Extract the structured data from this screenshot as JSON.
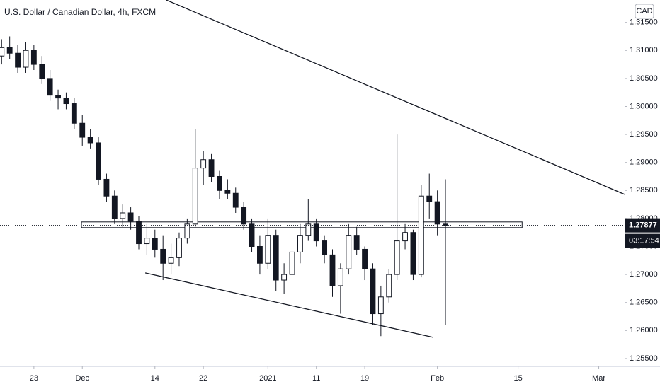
{
  "chart_data": {
    "type": "candlestick",
    "title": "U.S. Dollar / Canadian Dollar, 4h, FXCM",
    "currency": "CAD",
    "up_color": "#ffffff",
    "down_color": "#131722",
    "wick_color": "#131722",
    "x": [
      -4,
      -3,
      -2,
      -1,
      0,
      1,
      2,
      3,
      4,
      5,
      6,
      7,
      8,
      9,
      10,
      11,
      12,
      13,
      14,
      15,
      16,
      17,
      18,
      19,
      20,
      21,
      22,
      23,
      24,
      25,
      26,
      27,
      28,
      29,
      30,
      31,
      32,
      33,
      34,
      35,
      36,
      37,
      38,
      39,
      40,
      41,
      42,
      43,
      44,
      45,
      46,
      47,
      48,
      49,
      50,
      51
    ],
    "open": [
      1.309,
      1.3105,
      1.3095,
      1.307,
      1.31,
      1.3075,
      1.305,
      1.302,
      1.3015,
      1.3005,
      1.297,
      1.2945,
      1.2935,
      1.287,
      1.284,
      1.28,
      1.281,
      1.2795,
      1.2755,
      1.2765,
      1.2745,
      1.272,
      1.273,
      1.2765,
      1.279,
      1.289,
      1.2905,
      1.2875,
      1.285,
      1.2845,
      1.282,
      1.279,
      1.275,
      1.272,
      1.277,
      1.269,
      1.27,
      1.274,
      1.277,
      1.279,
      1.276,
      1.2735,
      1.268,
      1.271,
      1.277,
      1.2745,
      1.271,
      1.263,
      1.266,
      1.27,
      1.276,
      1.2775,
      1.27,
      1.284,
      1.283,
      1.279
    ],
    "high": [
      1.312,
      1.3125,
      1.311,
      1.3115,
      1.311,
      1.309,
      1.3065,
      1.303,
      1.3025,
      1.3015,
      1.2985,
      1.296,
      1.2945,
      1.288,
      1.285,
      1.2825,
      1.282,
      1.2805,
      1.279,
      1.278,
      1.277,
      1.2755,
      1.2775,
      1.28,
      1.296,
      1.292,
      1.2915,
      1.2885,
      1.287,
      1.2855,
      1.283,
      1.28,
      1.277,
      1.28,
      1.278,
      1.272,
      1.276,
      1.279,
      1.2835,
      1.28,
      1.277,
      1.2745,
      1.272,
      1.279,
      1.2785,
      1.275,
      1.272,
      1.268,
      1.271,
      1.295,
      1.279,
      1.278,
      1.286,
      1.288,
      1.285,
      1.287
    ],
    "low": [
      1.3075,
      1.3085,
      1.306,
      1.306,
      1.3065,
      1.304,
      1.301,
      1.2995,
      1.2995,
      1.296,
      1.293,
      1.2925,
      1.286,
      1.283,
      1.279,
      1.2785,
      1.278,
      1.2745,
      1.2735,
      1.273,
      1.269,
      1.27,
      1.2715,
      1.2755,
      1.2785,
      1.286,
      1.2865,
      1.2835,
      1.2835,
      1.281,
      1.278,
      1.274,
      1.27,
      1.271,
      1.267,
      1.2665,
      1.269,
      1.272,
      1.276,
      1.275,
      1.272,
      1.266,
      1.263,
      1.27,
      1.2735,
      1.269,
      1.261,
      1.259,
      1.265,
      1.269,
      1.2745,
      1.269,
      1.2695,
      1.28,
      1.277,
      1.261
    ],
    "close": [
      1.3105,
      1.3095,
      1.307,
      1.31,
      1.3075,
      1.305,
      1.302,
      1.3015,
      1.3005,
      1.297,
      1.2945,
      1.2935,
      1.287,
      1.284,
      1.28,
      1.281,
      1.2795,
      1.2755,
      1.2765,
      1.2745,
      1.272,
      1.273,
      1.2765,
      1.279,
      1.289,
      1.2905,
      1.2875,
      1.285,
      1.2845,
      1.282,
      1.279,
      1.275,
      1.272,
      1.277,
      1.269,
      1.27,
      1.274,
      1.277,
      1.279,
      1.276,
      1.2735,
      1.268,
      1.271,
      1.277,
      1.2745,
      1.271,
      1.263,
      1.266,
      1.27,
      1.276,
      1.2775,
      1.27,
      1.284,
      1.283,
      1.279,
      1.2788
    ],
    "xlim": [
      -4.2,
      73.2
    ],
    "ylim": [
      1.2536,
      1.319
    ],
    "xticks": [
      {
        "value": 0,
        "label": "23"
      },
      {
        "value": 6,
        "label": "Dec"
      },
      {
        "value": 15,
        "label": "14"
      },
      {
        "value": 21,
        "label": "22"
      },
      {
        "value": 29,
        "label": "2021"
      },
      {
        "value": 35,
        "label": "11"
      },
      {
        "value": 41,
        "label": "19"
      },
      {
        "value": 50,
        "label": "Feb"
      },
      {
        "value": 60,
        "label": "15"
      },
      {
        "value": 70,
        "label": "Mar"
      }
    ],
    "yticks": [
      {
        "value": 1.255,
        "label": "1.25500"
      },
      {
        "value": 1.26,
        "label": "1.26000"
      },
      {
        "value": 1.265,
        "label": "1.26500"
      },
      {
        "value": 1.27,
        "label": "1.27000"
      },
      {
        "value": 1.275,
        "label": "1.27500"
      },
      {
        "value": 1.28,
        "label": "1.28000"
      },
      {
        "value": 1.285,
        "label": "1.28500"
      },
      {
        "value": 1.29,
        "label": "1.29000"
      },
      {
        "value": 1.295,
        "label": "1.29500"
      },
      {
        "value": 1.3,
        "label": "1.30000"
      },
      {
        "value": 1.305,
        "label": "1.30500"
      },
      {
        "value": 1.31,
        "label": "1.31000"
      },
      {
        "value": 1.315,
        "label": "1.31500"
      }
    ],
    "last_price": 1.27877,
    "countdown": "03:17:54",
    "trendlines": [
      {
        "x": [
          16.4,
          73.2
        ],
        "y": [
          1.319,
          1.2843
        ]
      },
      {
        "x": [
          13.8,
          49.5
        ],
        "y": [
          1.27028,
          1.25878
        ]
      }
    ],
    "zone": {
      "x": [
        5.9,
        60.5
      ],
      "y": [
        1.27837,
        1.27938
      ]
    }
  }
}
